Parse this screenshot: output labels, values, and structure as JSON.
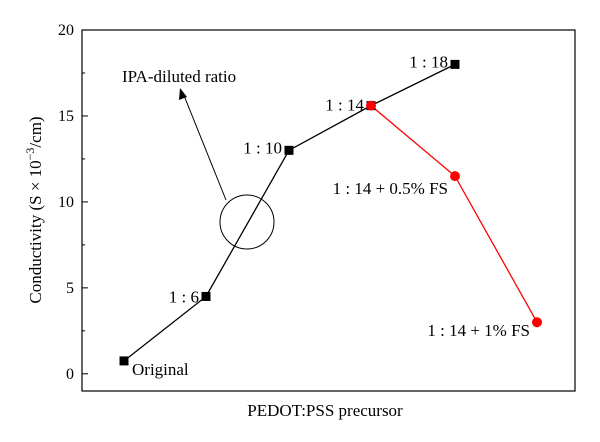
{
  "chart_data": {
    "type": "line",
    "xlabel": "PEDOT:PSS precursor",
    "ylabel": "Conductivity (S × 10",
    "ylabel_sup": "−3",
    "ylabel_tail": "/cm)",
    "ylim": [
      0,
      20
    ],
    "yticks": [
      0,
      5,
      10,
      15,
      20
    ],
    "ytick_labels": [
      "0",
      "5",
      "10",
      "15",
      "20"
    ],
    "grid": false,
    "series": [
      {
        "marker": "square",
        "color": "#000000",
        "points": [
          {
            "x": "Original",
            "y": 0.75
          },
          {
            "x": "1 : 6",
            "y": 4.5
          },
          {
            "x": "1 : 10",
            "y": 13.0
          },
          {
            "x": "1 : 14",
            "y": 15.6
          },
          {
            "x": "1 : 18",
            "y": 18.0
          }
        ]
      },
      {
        "marker": "circle",
        "color": "#ff0000",
        "points": [
          {
            "x": "1 : 14",
            "y": 15.6
          },
          {
            "x": "1 : 14 + 0.5% FS",
            "y": 11.5
          },
          {
            "x": "1 : 14 + 1% FS",
            "y": 3.0
          }
        ]
      }
    ],
    "annotation": {
      "text": "IPA-diluted ratio"
    }
  }
}
